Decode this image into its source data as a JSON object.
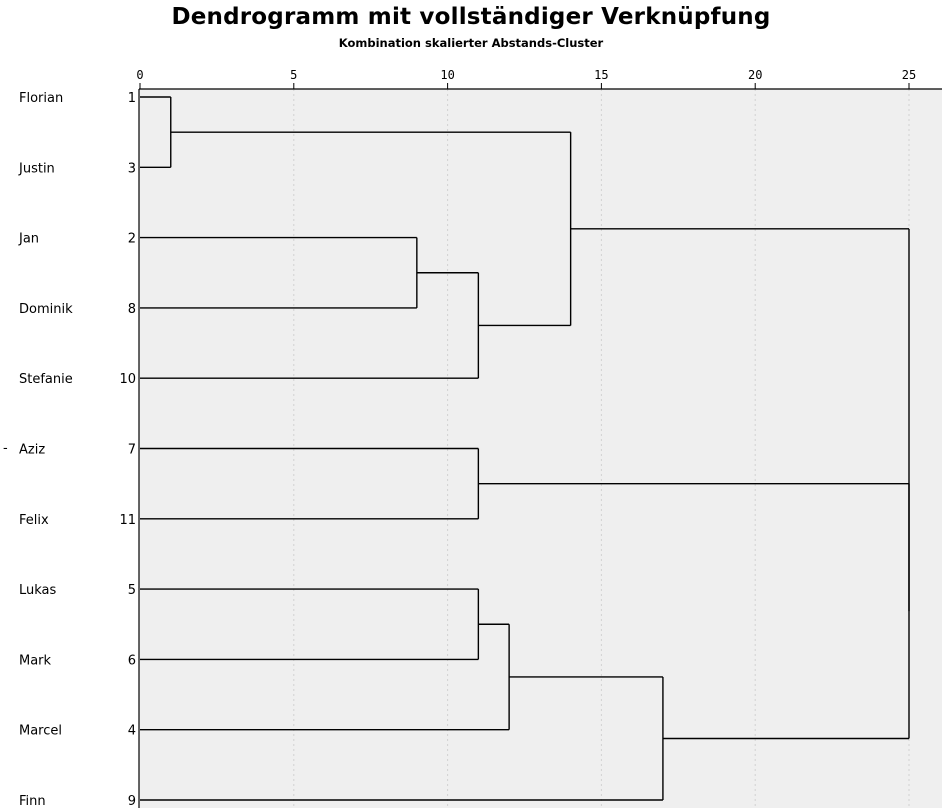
{
  "chart_data": {
    "type": "dendrogram",
    "title": "Dendrogramm mit vollständiger Verknüpfung",
    "subtitle": "Kombination skalierter Abstands-Cluster",
    "xlim": [
      0,
      25
    ],
    "xticks": [
      0,
      5,
      10,
      15,
      20,
      25
    ],
    "leaves": [
      {
        "name": "Florian",
        "id": "1"
      },
      {
        "name": "Justin",
        "id": "3"
      },
      {
        "name": "Jan",
        "id": "2"
      },
      {
        "name": "Dominik",
        "id": "8"
      },
      {
        "name": "Stefanie",
        "id": "10"
      },
      {
        "name": "Aziz",
        "id": "7"
      },
      {
        "name": "Felix",
        "id": "11"
      },
      {
        "name": "Lukas",
        "id": "5"
      },
      {
        "name": "Mark",
        "id": "6"
      },
      {
        "name": "Marcel",
        "id": "4"
      },
      {
        "name": "Finn",
        "id": "9"
      }
    ],
    "merges": [
      {
        "a": "L0",
        "b": "L1",
        "height": 1
      },
      {
        "a": "L2",
        "b": "L3",
        "height": 9
      },
      {
        "a": "M1",
        "b": "L4",
        "height": 11
      },
      {
        "a": "L5",
        "b": "L6",
        "height": 11
      },
      {
        "a": "L7",
        "b": "L8",
        "height": 11
      },
      {
        "a": "M4",
        "b": "L9",
        "height": 12
      },
      {
        "a": "M0",
        "b": "M2",
        "height": 14
      },
      {
        "a": "M5",
        "b": "L10",
        "height": 17
      },
      {
        "a": "M3",
        "b": "M7",
        "height": 25
      },
      {
        "a": "M6",
        "b": "M8",
        "height": 25
      }
    ],
    "grid": true
  },
  "side_mark": "-"
}
